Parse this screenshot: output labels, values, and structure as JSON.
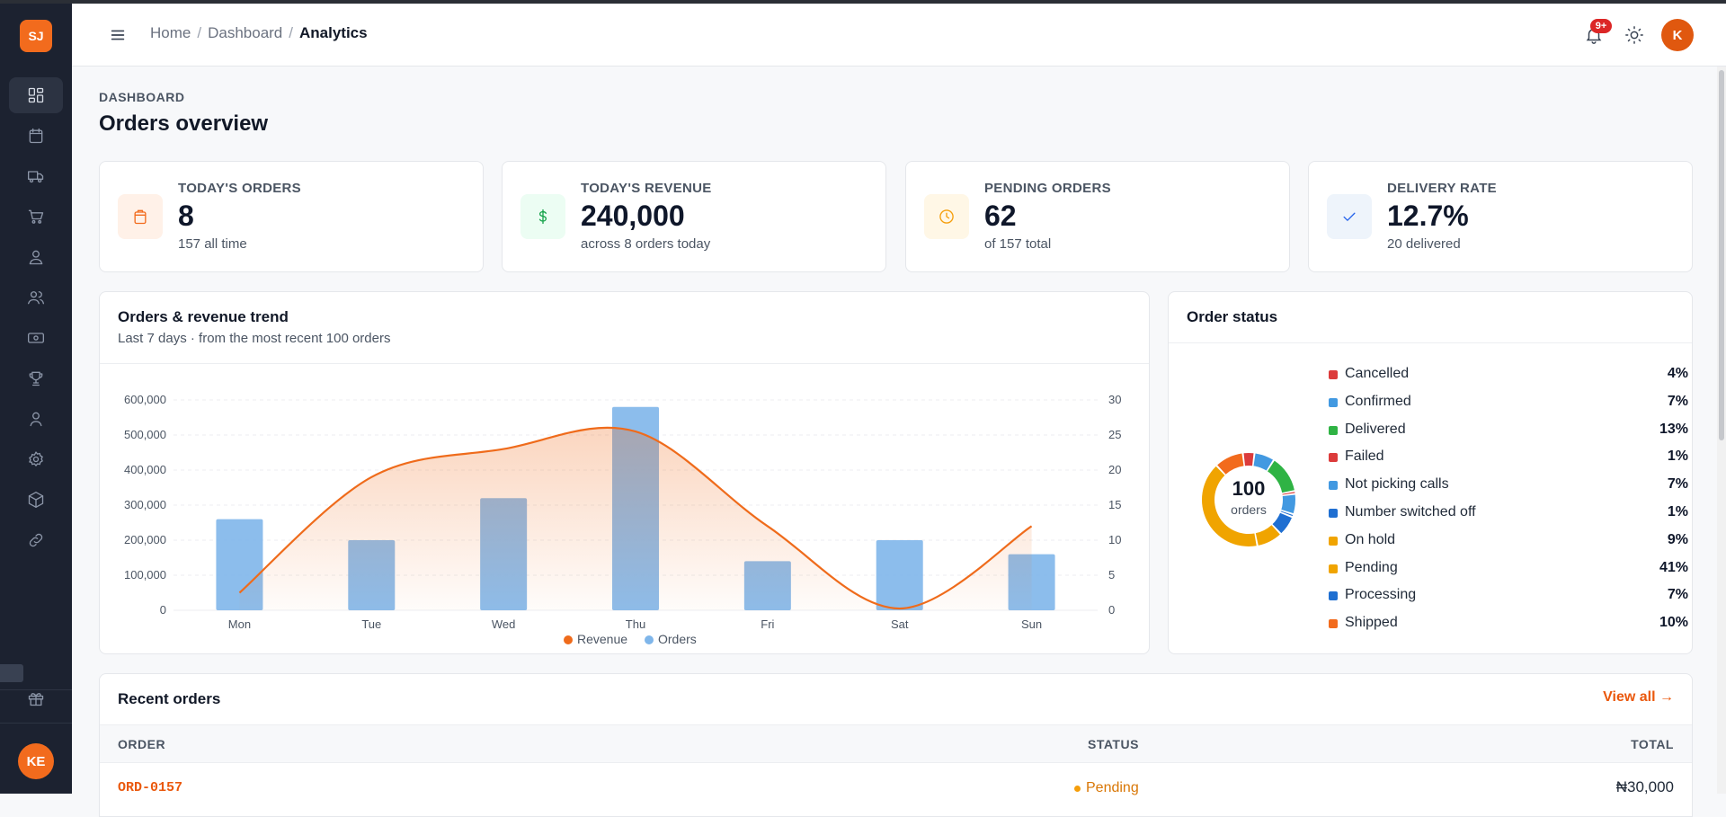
{
  "sidebar": {
    "logo": "SJ",
    "user_initials": "KE",
    "items": [
      {
        "icon": "dashboard-icon",
        "active": true
      },
      {
        "icon": "calendar-icon",
        "active": false
      },
      {
        "icon": "truck-icon",
        "active": false
      },
      {
        "icon": "cart-icon",
        "active": false
      },
      {
        "icon": "user-icon",
        "active": false
      },
      {
        "icon": "users-icon",
        "active": false
      },
      {
        "icon": "banknote-icon",
        "active": false
      },
      {
        "icon": "trophy-icon",
        "active": false
      },
      {
        "icon": "profile-icon",
        "active": false
      },
      {
        "icon": "settings-icon",
        "active": false
      },
      {
        "icon": "package-icon",
        "active": false
      },
      {
        "icon": "link-icon",
        "active": false
      },
      {
        "icon": "gift-icon",
        "active": false
      }
    ]
  },
  "header": {
    "breadcrumb": [
      "Home",
      "Dashboard",
      "Analytics"
    ],
    "notification_count": "9+",
    "avatar_initial": "K"
  },
  "page": {
    "eyebrow": "DASHBOARD",
    "title": "Orders overview"
  },
  "stats": [
    {
      "label": "TODAY'S ORDERS",
      "value": "8",
      "sub": "157 all time",
      "icon": "bag-icon",
      "color": "#f26b1d",
      "bg": "#fff1e8"
    },
    {
      "label": "TODAY'S REVENUE",
      "value": "240,000",
      "sub": "across 8 orders today",
      "icon": "dollar-icon",
      "color": "#16a34a",
      "bg": "#ecfdf3"
    },
    {
      "label": "PENDING ORDERS",
      "value": "62",
      "sub": "of 157 total",
      "icon": "clock-icon",
      "color": "#f59e0b",
      "bg": "#fff7e6"
    },
    {
      "label": "DELIVERY RATE",
      "value": "12.7%",
      "sub": "20 delivered",
      "icon": "check-icon",
      "color": "#2563eb",
      "bg": "#eef4fb"
    }
  ],
  "trend": {
    "title": "Orders & revenue trend",
    "subtitle": "Last 7 days · from the most recent 100 orders"
  },
  "chart_data": {
    "type": "bar",
    "categories": [
      "Mon",
      "Tue",
      "Wed",
      "Thu",
      "Fri",
      "Sat",
      "Sun"
    ],
    "series": [
      {
        "name": "Revenue",
        "type": "line",
        "axis": "left",
        "values": [
          50000,
          380000,
          460000,
          510000,
          240000,
          5000,
          240000
        ]
      },
      {
        "name": "Orders",
        "type": "bar",
        "axis": "right",
        "values": [
          13,
          10,
          16,
          29,
          7,
          10,
          8
        ]
      }
    ],
    "y_left": {
      "ticks": [
        "0",
        "100,000",
        "200,000",
        "300,000",
        "400,000",
        "500,000",
        "600,000"
      ],
      "min": 0,
      "max": 600000
    },
    "y_right": {
      "ticks": [
        "0",
        "5",
        "10",
        "15",
        "20",
        "25",
        "30"
      ],
      "min": 0,
      "max": 30
    },
    "legend": [
      "Revenue",
      "Orders"
    ],
    "colors": {
      "revenue": "#ef6b1b",
      "orders": "#7fb6ea"
    },
    "grid": true,
    "legend_position": "bottom"
  },
  "status": {
    "title": "Order status",
    "total": "100",
    "total_label": "orders",
    "items": [
      {
        "name": "Cancelled",
        "pct": "4%",
        "value": 4,
        "color": "#dc3b3b"
      },
      {
        "name": "Confirmed",
        "pct": "7%",
        "value": 7,
        "color": "#4299e1"
      },
      {
        "name": "Delivered",
        "pct": "13%",
        "value": 13,
        "color": "#2fb344"
      },
      {
        "name": "Failed",
        "pct": "1%",
        "value": 1,
        "color": "#dc3b3b"
      },
      {
        "name": "Not picking calls",
        "pct": "7%",
        "value": 7,
        "color": "#4299e1"
      },
      {
        "name": "Number switched off",
        "pct": "1%",
        "value": 1,
        "color": "#1f6fd1"
      },
      {
        "name": "On hold",
        "pct": "9%",
        "value": 9,
        "color": "#f0a400"
      },
      {
        "name": "Pending",
        "pct": "41%",
        "value": 41,
        "color": "#f0a400"
      },
      {
        "name": "Processing",
        "pct": "7%",
        "value": 7,
        "color": "#1f6fd1"
      },
      {
        "name": "Shipped",
        "pct": "10%",
        "value": 10,
        "color": "#f26b1d"
      }
    ]
  },
  "recent": {
    "title": "Recent orders",
    "view_all": "View all →",
    "columns": [
      "ORDER",
      "STATUS",
      "TOTAL"
    ],
    "rows": [
      {
        "id": "ORD-0157",
        "status": "Pending",
        "total": "₦30,000"
      }
    ]
  }
}
